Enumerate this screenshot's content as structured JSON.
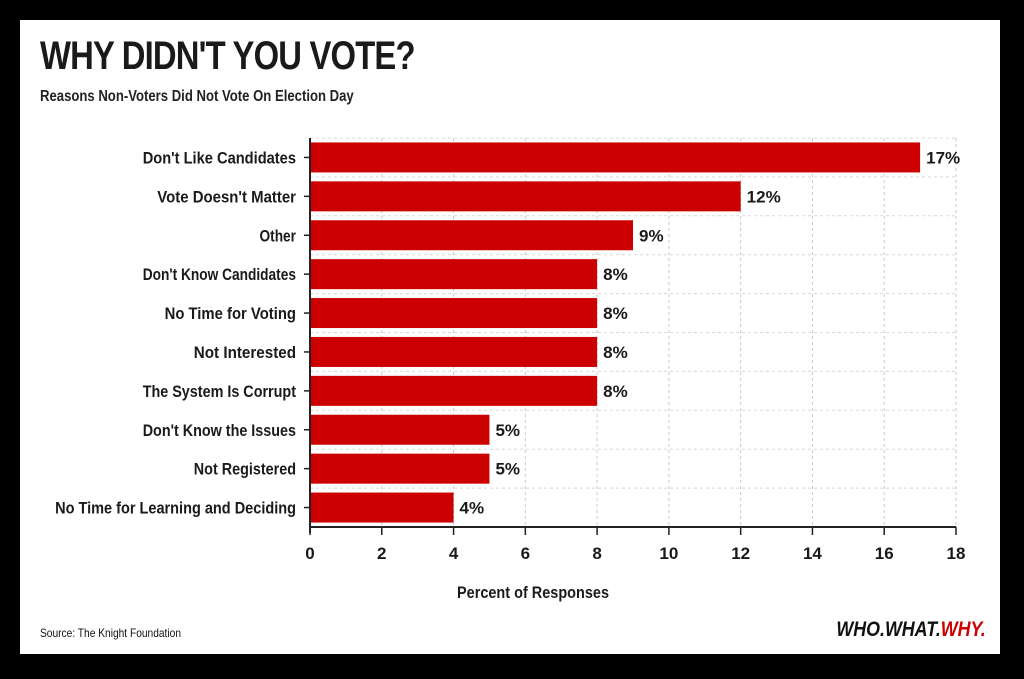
{
  "title": "WHY DIDN'T YOU VOTE?",
  "subtitle": "Reasons Non-Voters Did Not Vote On Election Day",
  "source": "Source: The Knight Foundation",
  "brand": {
    "part1": "WHO.WHAT.",
    "part2": "WHY."
  },
  "colors": {
    "bar": "#cc0000",
    "brand_accent": "#cc0000",
    "frame": "#000000"
  },
  "chart_data": {
    "type": "bar",
    "orientation": "horizontal",
    "categories": [
      "Don't Like Candidates",
      "Vote Doesn't Matter",
      "Other",
      "Don't Know Candidates",
      "No Time for Voting",
      "Not Interested",
      "The System Is Corrupt",
      "Don't Know the Issues",
      "Not Registered",
      "No Time for Learning and Deciding"
    ],
    "values": [
      17,
      12,
      9,
      8,
      8,
      8,
      8,
      5,
      5,
      4
    ],
    "data_labels": [
      "17%",
      "12%",
      "9%",
      "8%",
      "8%",
      "8%",
      "8%",
      "5%",
      "5%",
      "4%"
    ],
    "xlabel": "Percent of Responses",
    "ylabel": "",
    "xlim": [
      0,
      18
    ],
    "xticks": [
      0,
      2,
      4,
      6,
      8,
      10,
      12,
      14,
      16,
      18
    ],
    "grid": true
  }
}
